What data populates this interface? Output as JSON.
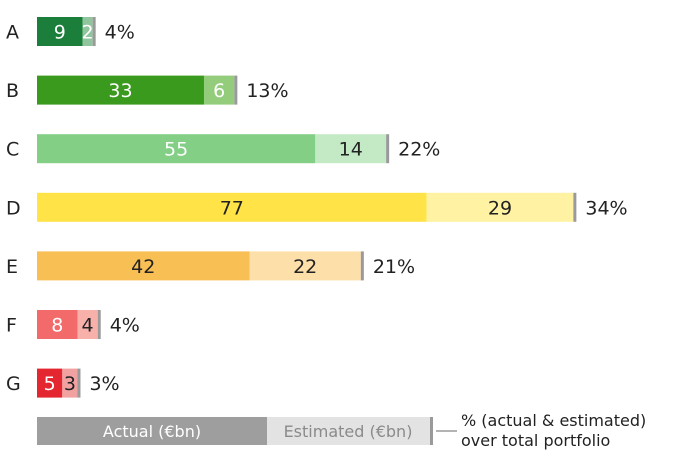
{
  "chart_data": {
    "type": "bar",
    "orientation": "horizontal",
    "stacked": true,
    "categories": [
      "A",
      "B",
      "C",
      "D",
      "E",
      "F",
      "G"
    ],
    "series": [
      {
        "name": "Actual (€bn)",
        "values": [
          9,
          33,
          55,
          77,
          42,
          8,
          5
        ]
      },
      {
        "name": "Estimated (€bn)",
        "values": [
          2,
          6,
          14,
          29,
          22,
          4,
          3
        ]
      }
    ],
    "percent_labels": [
      "4%",
      "13%",
      "22%",
      "34%",
      "21%",
      "4%",
      "3%"
    ],
    "colors": {
      "actual": [
        "#1b7f3b",
        "#3a9a1e",
        "#82cf85",
        "#ffe347",
        "#f8bf54",
        "#f26a6a",
        "#e3262f"
      ],
      "estimated": [
        "#91c59d",
        "#93cd7c",
        "#c4e9c5",
        "#fff3a3",
        "#fddfaa",
        "#f8b0ab",
        "#f2a1a1"
      ],
      "actual_text": [
        "#ffffff",
        "#ffffff",
        "#ffffff",
        "#222222",
        "#222222",
        "#ffffff",
        "#ffffff"
      ],
      "estimated_text": [
        "#ffffff",
        "#ffffff",
        "#222222",
        "#222222",
        "#222222",
        "#222222",
        "#222222"
      ],
      "end_marker": "#9a9a9a"
    },
    "legend": {
      "actual_label": "Actual (€bn)",
      "estimated_label": "Estimated (€bn)",
      "note_line1": "% (actual & estimated)",
      "note_line2": "over total portfolio",
      "actual_color": "#9e9e9e",
      "estimated_color": "#e3e3e3",
      "actual_text_color": "#ffffff",
      "estimated_text_color": "#8a8a8a",
      "position": "bottom"
    }
  }
}
